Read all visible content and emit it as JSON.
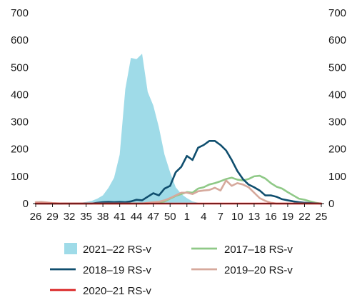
{
  "chart_data": {
    "type": "area",
    "title": "",
    "xlabel": "",
    "ylabel": "",
    "ylim": [
      0,
      700
    ],
    "yticks": [
      0,
      100,
      200,
      300,
      400,
      500,
      600,
      700
    ],
    "y_axis_both_sides": true,
    "grid": false,
    "legend_position": "bottom",
    "x_labels": [
      "26",
      "27",
      "28",
      "29",
      "30",
      "31",
      "32",
      "33",
      "34",
      "35",
      "36",
      "37",
      "38",
      "39",
      "40",
      "41",
      "42",
      "43",
      "44",
      "45",
      "46",
      "47",
      "48",
      "49",
      "50",
      "51",
      "52",
      "1",
      "2",
      "3",
      "4",
      "5",
      "6",
      "7",
      "8",
      "9",
      "10",
      "11",
      "12",
      "13",
      "14",
      "15",
      "16",
      "17",
      "18",
      "19",
      "20",
      "21",
      "22",
      "23",
      "24",
      "25"
    ],
    "x_tick_labels": [
      "26",
      "29",
      "32",
      "35",
      "38",
      "41",
      "44",
      "47",
      "50",
      "1",
      "4",
      "7",
      "10",
      "13",
      "16",
      "19",
      "22",
      "25"
    ],
    "series": [
      {
        "name": "2021–22 RS-v",
        "kind": "area",
        "color": "#9fdbe8",
        "values": [
          0,
          0,
          0,
          0,
          0,
          0,
          0,
          0,
          3,
          6,
          10,
          18,
          30,
          58,
          95,
          180,
          420,
          535,
          530,
          550,
          410,
          360,
          280,
          180,
          115,
          60,
          35,
          20,
          8,
          3,
          0,
          0,
          0,
          0,
          0,
          0,
          0,
          0,
          0,
          0,
          0,
          0,
          0,
          0,
          0,
          0,
          0,
          0,
          0,
          0,
          0,
          0
        ]
      },
      {
        "name": "2017–18 RS-v",
        "kind": "line",
        "color": "#8fc987",
        "values": [
          0,
          0,
          0,
          0,
          0,
          0,
          0,
          0,
          0,
          0,
          0,
          0,
          0,
          0,
          0,
          0,
          0,
          0,
          0,
          0,
          0,
          2,
          4,
          8,
          18,
          28,
          35,
          42,
          40,
          55,
          60,
          70,
          75,
          82,
          90,
          95,
          88,
          85,
          90,
          100,
          102,
          92,
          75,
          62,
          55,
          42,
          30,
          18,
          14,
          8,
          3,
          0
        ]
      },
      {
        "name": "2018–19 RS-v",
        "kind": "line",
        "color": "#0f4e6e",
        "values": [
          0,
          0,
          0,
          0,
          0,
          0,
          0,
          0,
          0,
          0,
          0,
          3,
          5,
          6,
          5,
          6,
          5,
          8,
          14,
          12,
          25,
          38,
          30,
          55,
          65,
          115,
          135,
          175,
          160,
          205,
          215,
          230,
          230,
          215,
          195,
          160,
          120,
          90,
          70,
          60,
          48,
          30,
          30,
          25,
          16,
          12,
          8,
          5,
          3,
          2,
          1,
          0
        ]
      },
      {
        "name": "2019–20 RS-v",
        "kind": "line",
        "color": "#d6a99c",
        "values": [
          5,
          6,
          4,
          2,
          1,
          0,
          0,
          0,
          0,
          0,
          0,
          0,
          0,
          0,
          0,
          0,
          0,
          0,
          0,
          0,
          3,
          5,
          7,
          12,
          20,
          30,
          40,
          40,
          35,
          45,
          48,
          50,
          58,
          48,
          85,
          65,
          75,
          70,
          60,
          40,
          20,
          10,
          3,
          0,
          0,
          0,
          0,
          0,
          0,
          0,
          0,
          0
        ]
      },
      {
        "name": "2020–21 RS-v",
        "kind": "line",
        "color": "#d92020",
        "values": [
          0,
          0,
          0,
          0,
          0,
          0,
          0,
          0,
          0,
          0,
          0,
          0,
          0,
          0,
          0,
          0,
          0,
          0,
          0,
          0,
          0,
          0,
          0,
          0,
          0,
          0,
          0,
          0,
          0,
          0,
          0,
          0,
          0,
          0,
          0,
          0,
          0,
          0,
          0,
          0,
          0,
          0,
          0,
          0,
          0,
          0,
          0,
          0,
          0,
          0,
          0,
          0
        ]
      }
    ],
    "legend": [
      {
        "label": "2021–22 RS-v",
        "series": 0,
        "style": "area"
      },
      {
        "label": "2017–18 RS-v",
        "series": 1,
        "style": "line"
      },
      {
        "label": "2018–19 RS-v",
        "series": 2,
        "style": "line"
      },
      {
        "label": "2019–20 RS-v",
        "series": 3,
        "style": "line"
      },
      {
        "label": "2020–21 RS-v",
        "series": 4,
        "style": "line"
      }
    ]
  }
}
